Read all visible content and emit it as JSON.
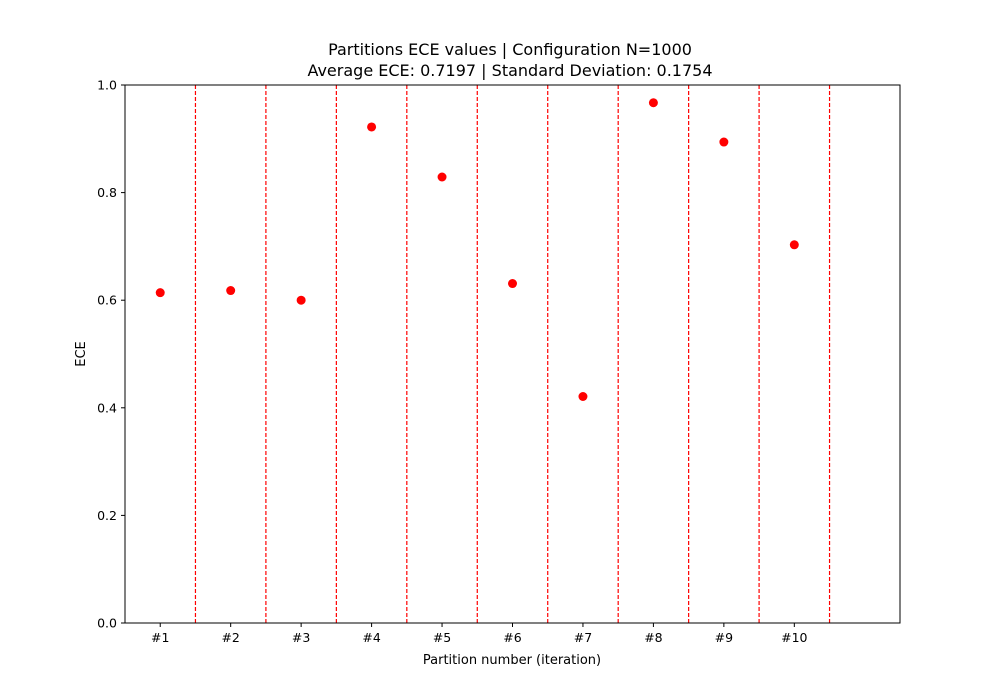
{
  "chart_data": {
    "type": "scatter",
    "title": "Partitions ECE values | Configuration N=1000",
    "subtitle": "Average ECE: 0.7197 | Standard Deviation: 0.1754",
    "xlabel": "Partition number (iteration)",
    "ylabel": "ECE",
    "categories": [
      "#1",
      "#2",
      "#3",
      "#4",
      "#5",
      "#6",
      "#7",
      "#8",
      "#9",
      "#10"
    ],
    "values": [
      0.614,
      0.618,
      0.6,
      0.922,
      0.829,
      0.631,
      0.421,
      0.967,
      0.894,
      0.703
    ],
    "ylim": [
      0,
      1.0
    ],
    "yticks": [
      "0.0",
      "0.2",
      "0.4",
      "0.6",
      "0.8",
      "1.0"
    ],
    "xlim": [
      0.5,
      11.5
    ],
    "separators": [
      1.5,
      2.5,
      3.5,
      4.5,
      5.5,
      6.5,
      7.5,
      8.5,
      9.5,
      10.5
    ],
    "grid": false,
    "point_color": "#ff0000",
    "separator_color": "#ff0000"
  }
}
